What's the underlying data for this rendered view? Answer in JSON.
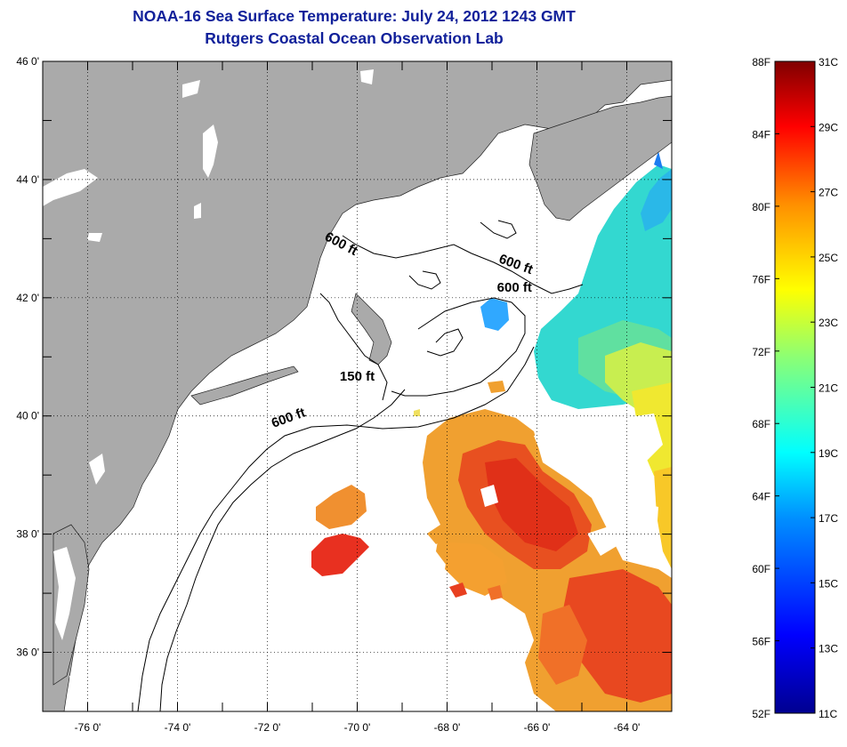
{
  "title": {
    "line1": "NOAA-16 Sea Surface Temperature:  July 24, 2012 1243 GMT",
    "line2": "Rutgers Coastal Ocean Observation Lab"
  },
  "map": {
    "lon_range": [
      -77,
      -63
    ],
    "lat_range": [
      35,
      46
    ],
    "lon_ticks": [
      -76,
      -74,
      -72,
      -70,
      -68,
      -66,
      -64
    ],
    "lon_tick_labels": [
      "-76 0'",
      "-74 0'",
      "-72 0'",
      "-70 0'",
      "-68 0'",
      "-66 0'",
      "-64 0'"
    ],
    "lat_ticks": [
      46,
      44,
      42,
      40,
      38,
      36
    ],
    "lat_tick_labels": [
      "46 0'",
      "44 0'",
      "42 0'",
      "40 0'",
      "38 0'",
      "36 0'"
    ],
    "grid": "dotted",
    "land_color": "#aaaaaa",
    "ocean_color": "#ffffff",
    "contour_labels": [
      {
        "text": "600 ft",
        "lon": -70.4,
        "lat": 42.85
      },
      {
        "text": "600 ft",
        "lon": -66.5,
        "lat": 42.5
      },
      {
        "text": "600 ft",
        "lon": -66.5,
        "lat": 42.1
      },
      {
        "text": "150 ft",
        "lon": -70.0,
        "lat": 40.6
      },
      {
        "text": "600 ft",
        "lon": -71.5,
        "lat": 39.9
      }
    ]
  },
  "colorbar": {
    "fahrenheit_labels": [
      "88F",
      "84F",
      "80F",
      "76F",
      "72F",
      "68F",
      "64F",
      "60F",
      "56F",
      "52F"
    ],
    "celsius_labels": [
      "31C",
      "29C",
      "27C",
      "25C",
      "23C",
      "21C",
      "19C",
      "17C",
      "15C",
      "13C",
      "11C"
    ],
    "range_c": [
      11,
      31
    ],
    "colors": [
      "#000090",
      "#0000ff",
      "#0090ff",
      "#00ffff",
      "#90ff70",
      "#ffff00",
      "#ff9000",
      "#ff0000",
      "#800000"
    ]
  }
}
